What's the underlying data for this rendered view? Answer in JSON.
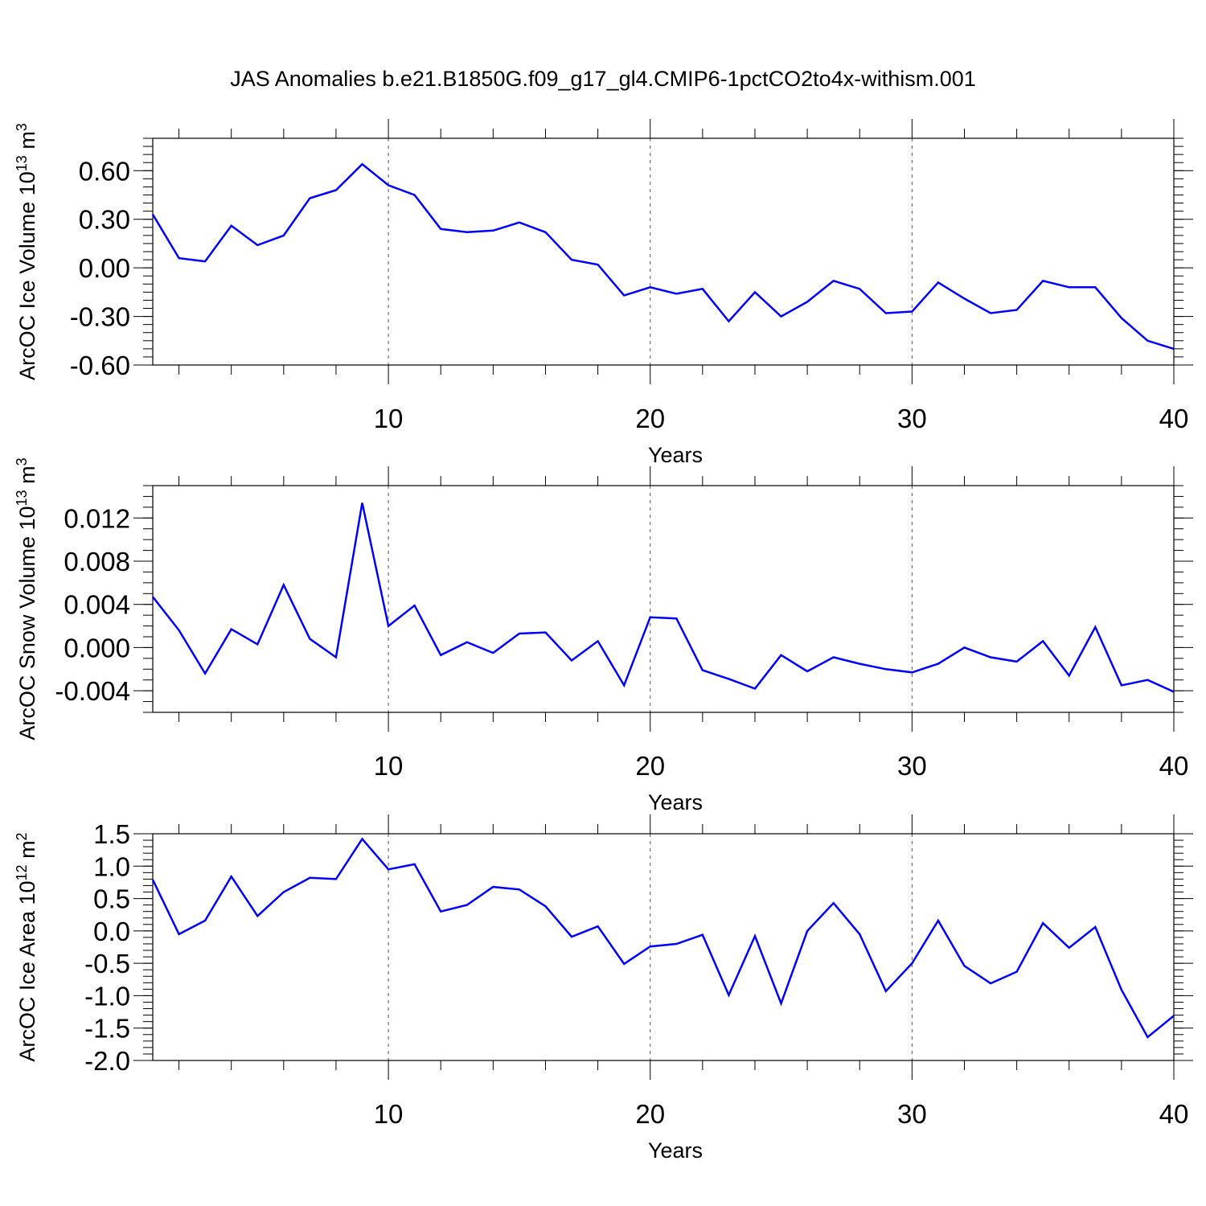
{
  "chart_data": {
    "title": "JAS Anomalies b.e21.B1850G.f09_g17_gl4.CMIP6-1pctCO2to4x-withism.001",
    "type": "line",
    "line_color": "#0000ff",
    "grid": "dashed vertical lines at x = 10, 20, 30",
    "panels": [
      {
        "ylabel": "ArcOC Ice Volume 10",
        "ylabel_sup": "13",
        "ylabel_unit": " m",
        "ylabel_unit_sup": "3",
        "xlabel": "Years",
        "xlim": [
          1,
          40
        ],
        "ylim": [
          -0.6,
          0.8
        ],
        "x_ticks": [
          10,
          20,
          30,
          40
        ],
        "y_ticks": [
          "0.60",
          "0.30",
          "0.00",
          "-0.30",
          "-0.60"
        ],
        "x": [
          1,
          2,
          3,
          4,
          5,
          6,
          7,
          8,
          9,
          10,
          11,
          12,
          13,
          14,
          15,
          16,
          17,
          18,
          19,
          20,
          21,
          22,
          23,
          24,
          25,
          26,
          27,
          28,
          29,
          30,
          31,
          32,
          33,
          34,
          35,
          36,
          37,
          38,
          39,
          40
        ],
        "values": [
          0.33,
          0.06,
          0.04,
          0.26,
          0.14,
          0.2,
          0.43,
          0.48,
          0.64,
          0.51,
          0.45,
          0.24,
          0.22,
          0.23,
          0.28,
          0.22,
          0.05,
          0.02,
          -0.17,
          -0.12,
          -0.16,
          -0.13,
          -0.33,
          -0.15,
          -0.3,
          -0.21,
          -0.08,
          -0.13,
          -0.28,
          -0.27,
          -0.09,
          -0.19,
          -0.28,
          -0.26,
          -0.08,
          -0.12,
          -0.12,
          -0.31,
          -0.45,
          -0.5
        ]
      },
      {
        "ylabel": "ArcOC Snow Volume 10",
        "ylabel_sup": "13",
        "ylabel_unit": " m",
        "ylabel_unit_sup": "3",
        "xlabel": "Years",
        "xlim": [
          1,
          40
        ],
        "ylim": [
          -0.006,
          0.015
        ],
        "x_ticks": [
          10,
          20,
          30,
          40
        ],
        "y_ticks": [
          "0.012",
          "0.008",
          "0.004",
          "0.000",
          "-0.004"
        ],
        "x": [
          1,
          2,
          3,
          4,
          5,
          6,
          7,
          8,
          9,
          10,
          11,
          12,
          13,
          14,
          15,
          16,
          17,
          18,
          19,
          20,
          21,
          22,
          23,
          24,
          25,
          26,
          27,
          28,
          29,
          30,
          31,
          32,
          33,
          34,
          35,
          36,
          37,
          38,
          39,
          40
        ],
        "values": [
          0.0047,
          0.0016,
          -0.0024,
          0.0017,
          0.0003,
          0.0058,
          0.0008,
          -0.0009,
          0.0134,
          0.002,
          0.0039,
          -0.0007,
          0.0005,
          -0.0005,
          0.0013,
          0.0014,
          -0.0012,
          0.0006,
          -0.0035,
          0.0028,
          0.0027,
          -0.0021,
          -0.0029,
          -0.0038,
          -0.0007,
          -0.0022,
          -0.0009,
          -0.0015,
          -0.002,
          -0.0023,
          -0.0015,
          0.0,
          -0.0009,
          -0.0013,
          0.0006,
          -0.0026,
          0.0019,
          -0.0035,
          -0.003,
          -0.0041
        ]
      },
      {
        "ylabel": "ArcOC Ice Area 10",
        "ylabel_sup": "12",
        "ylabel_unit": " m",
        "ylabel_unit_sup": "2",
        "xlabel": "Years",
        "xlim": [
          1,
          40
        ],
        "ylim": [
          -2.0,
          1.5
        ],
        "x_ticks": [
          10,
          20,
          30,
          40
        ],
        "y_ticks": [
          "1.5",
          "1.0",
          "0.5",
          "0.0",
          "-0.5",
          "-1.0",
          "-1.5",
          "-2.0"
        ],
        "x": [
          1,
          2,
          3,
          4,
          5,
          6,
          7,
          8,
          9,
          10,
          11,
          12,
          13,
          14,
          15,
          16,
          17,
          18,
          19,
          20,
          21,
          22,
          23,
          24,
          25,
          26,
          27,
          28,
          29,
          30,
          31,
          32,
          33,
          34,
          35,
          36,
          37,
          38,
          39,
          40
        ],
        "values": [
          0.79,
          -0.05,
          0.16,
          0.84,
          0.23,
          0.6,
          0.82,
          0.8,
          1.42,
          0.95,
          1.03,
          0.3,
          0.4,
          0.68,
          0.64,
          0.38,
          -0.09,
          0.07,
          -0.51,
          -0.24,
          -0.2,
          -0.06,
          -0.99,
          -0.08,
          -1.12,
          0.0,
          0.43,
          -0.05,
          -0.93,
          -0.5,
          0.16,
          -0.54,
          -0.81,
          -0.63,
          0.12,
          -0.26,
          0.06,
          -0.91,
          -1.64,
          -1.31
        ]
      }
    ]
  }
}
